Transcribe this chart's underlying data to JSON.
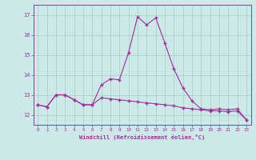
{
  "xlabel": "Windchill (Refroidissement éolien,°C)",
  "x_values": [
    0,
    1,
    2,
    3,
    4,
    5,
    6,
    7,
    8,
    9,
    10,
    11,
    12,
    13,
    14,
    15,
    16,
    17,
    18,
    19,
    20,
    21,
    22,
    23
  ],
  "line1_y": [
    12.5,
    12.4,
    13.0,
    13.0,
    12.75,
    12.5,
    12.5,
    13.5,
    13.8,
    13.75,
    15.1,
    16.9,
    16.5,
    16.85,
    15.6,
    14.3,
    13.35,
    12.7,
    12.3,
    12.25,
    12.3,
    12.25,
    12.3,
    11.75
  ],
  "line2_y": [
    12.5,
    12.4,
    13.0,
    13.0,
    12.75,
    12.5,
    12.5,
    12.85,
    12.8,
    12.75,
    12.7,
    12.65,
    12.6,
    12.55,
    12.5,
    12.45,
    12.35,
    12.3,
    12.25,
    12.2,
    12.2,
    12.15,
    12.2,
    11.75
  ],
  "line_color": "#993399",
  "bg_color": "#cce8e8",
  "grid_color": "#aacccc",
  "ylim": [
    11.5,
    17.5
  ],
  "yticks": [
    12,
    13,
    14,
    15,
    16,
    17
  ],
  "xticks": [
    0,
    1,
    2,
    3,
    4,
    5,
    6,
    7,
    8,
    9,
    10,
    11,
    12,
    13,
    14,
    15,
    16,
    17,
    18,
    19,
    20,
    21,
    22,
    23
  ]
}
